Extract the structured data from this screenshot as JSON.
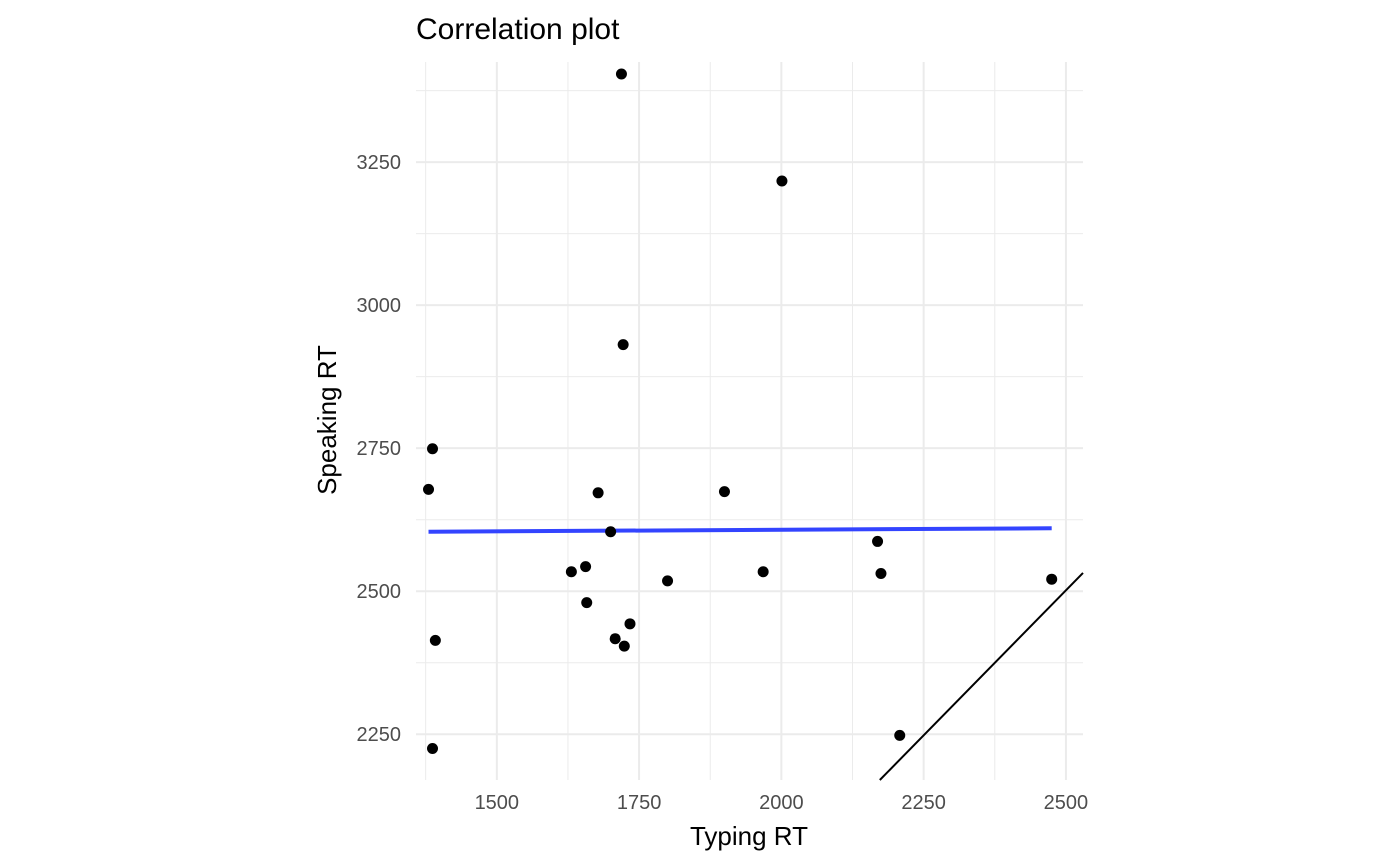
{
  "chart_data": {
    "type": "scatter",
    "title": "Correlation plot",
    "xlabel": "Typing RT",
    "ylabel": "Speaking RT",
    "xlim": [
      1358,
      2530
    ],
    "ylim": [
      2170,
      3425
    ],
    "x_ticks": [
      1500,
      1750,
      2000,
      2250,
      2500
    ],
    "y_ticks": [
      2250,
      2500,
      2750,
      3000,
      3250
    ],
    "x_tick_labels": [
      "1500",
      "1750",
      "2000",
      "2250",
      "2500"
    ],
    "y_tick_labels": [
      "2250",
      "2500",
      "2750",
      "3000",
      "3250"
    ],
    "x_minor": [
      1375,
      1625,
      1875,
      2125,
      2375
    ],
    "y_minor": [
      2375,
      2625,
      2875,
      3125,
      3375
    ],
    "grid": true,
    "points": [
      {
        "x": 1380,
        "y": 2678
      },
      {
        "x": 1387,
        "y": 2749
      },
      {
        "x": 1387,
        "y": 2225
      },
      {
        "x": 1392,
        "y": 2414
      },
      {
        "x": 1631,
        "y": 2534
      },
      {
        "x": 1656,
        "y": 2543
      },
      {
        "x": 1658,
        "y": 2480
      },
      {
        "x": 1678,
        "y": 2672
      },
      {
        "x": 1700,
        "y": 2604
      },
      {
        "x": 1708,
        "y": 2417
      },
      {
        "x": 1719,
        "y": 3404
      },
      {
        "x": 1722,
        "y": 2931
      },
      {
        "x": 1724,
        "y": 2404
      },
      {
        "x": 1734,
        "y": 2443
      },
      {
        "x": 1800,
        "y": 2518
      },
      {
        "x": 1900,
        "y": 2674
      },
      {
        "x": 1968,
        "y": 2534
      },
      {
        "x": 2001,
        "y": 3217
      },
      {
        "x": 2169,
        "y": 2587
      },
      {
        "x": 2175,
        "y": 2531
      },
      {
        "x": 2208,
        "y": 2248
      },
      {
        "x": 2475,
        "y": 2521
      }
    ],
    "regression_line": {
      "x": [
        1380,
        2475
      ],
      "y": [
        2604,
        2610
      ],
      "color": "#3344ff"
    },
    "reference_line": {
      "x": [
        2173,
        2530
      ],
      "y": [
        2170,
        2532
      ],
      "color": "#000000"
    },
    "point_color": "#000000",
    "grid_color": "#ebebeb"
  }
}
